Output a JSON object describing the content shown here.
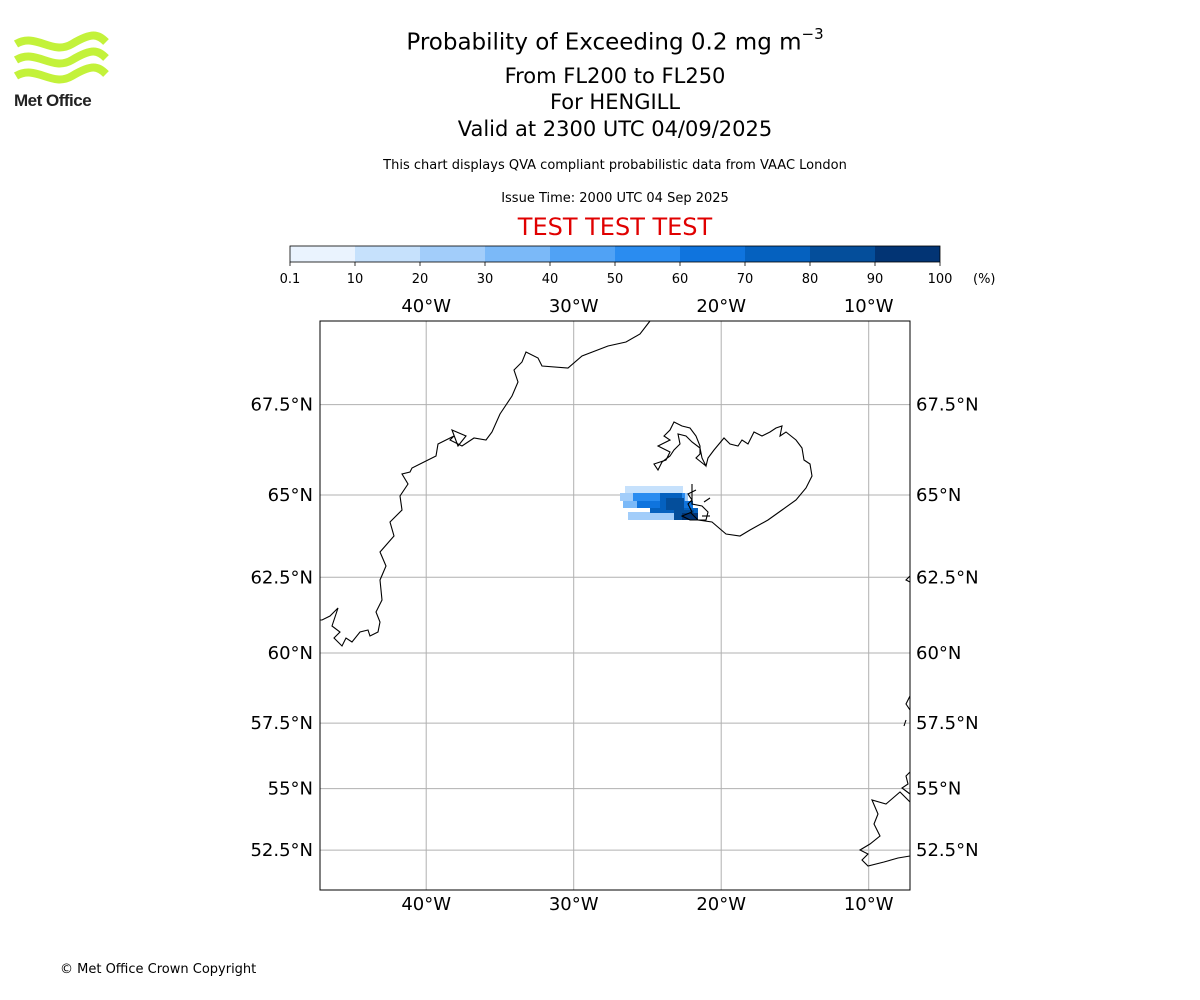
{
  "header": {
    "title_prefix": "Probability of Exceeding 0.2 mg m",
    "title_exponent": "−3",
    "level": "From FL200 to FL250",
    "volcano": "For HENGILL",
    "valid": "Valid at 2300 UTC 04/09/2025",
    "subtitle": "This chart displays QVA compliant probabilistic data from VAAC London",
    "issue": "Issue Time: 2000 UTC 04 Sep 2025",
    "test_banner": "TEST TEST TEST"
  },
  "logo": {
    "text": "Met Office",
    "color": "#c3f23a"
  },
  "footer": {
    "copyright": "© Met Office Crown Copyright"
  },
  "colorbar": {
    "unit": "(%)",
    "ticks": [
      "0.1",
      "10",
      "20",
      "30",
      "40",
      "50",
      "60",
      "70",
      "80",
      "90",
      "100"
    ],
    "colors": [
      "#eaf3fe",
      "#c6e1fc",
      "#a2cdfa",
      "#7bb9f8",
      "#50a2f5",
      "#2a8cf0",
      "#0f74de",
      "#0561bf",
      "#044e9b",
      "#023474"
    ]
  },
  "map": {
    "lon_range": [
      -47.2,
      -7.2
    ],
    "lat_range": [
      50.8,
      69.6
    ],
    "lon_ticks": [
      {
        "value": -40,
        "label": "40°W"
      },
      {
        "value": -30,
        "label": "30°W"
      },
      {
        "value": -20,
        "label": "20°W"
      },
      {
        "value": -10,
        "label": "10°W"
      }
    ],
    "lat_ticks": [
      {
        "value": 67.5,
        "label": "67.5°N"
      },
      {
        "value": 65,
        "label": "65°N"
      },
      {
        "value": 62.5,
        "label": "62.5°N"
      },
      {
        "value": 60,
        "label": "60°N"
      },
      {
        "value": 57.5,
        "label": "57.5°N"
      },
      {
        "value": 55,
        "label": "55°N"
      },
      {
        "value": 52.5,
        "label": "52.5°N"
      }
    ]
  }
}
